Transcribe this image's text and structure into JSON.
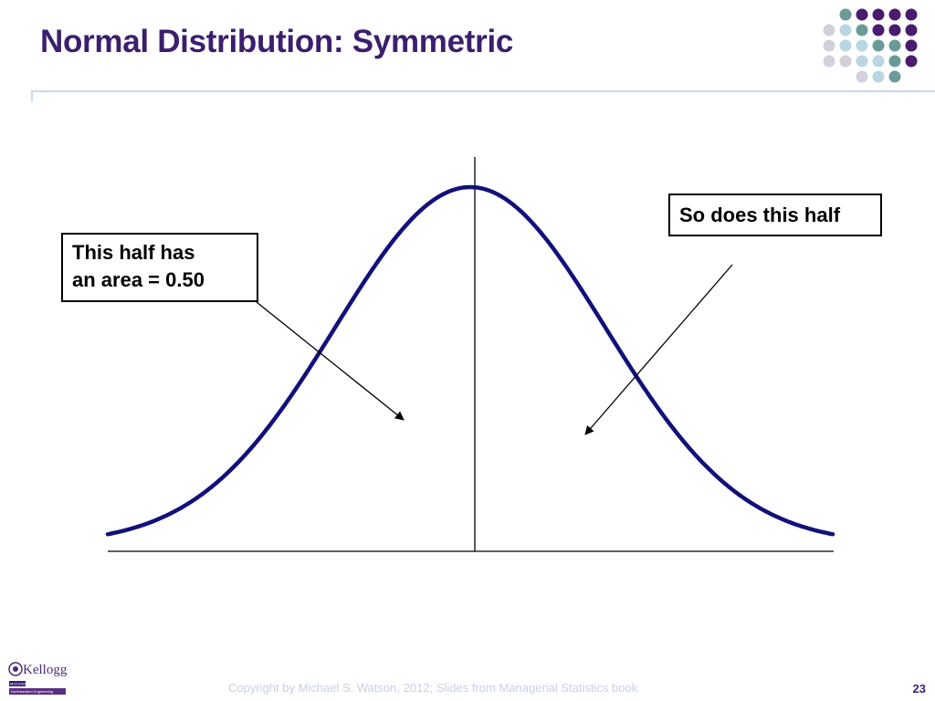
{
  "slide": {
    "title": "Normal Distribution: Symmetric",
    "page_number": "23",
    "footer": "Copyright by Michael S. Watson, 2012;  Slides from Managerial Statistics book"
  },
  "callouts": {
    "left": {
      "line1": "This half has",
      "line2": "an area = 0.50"
    },
    "right": {
      "text": "So does this half"
    }
  },
  "logo": {
    "name": "Kellogg",
    "line1": "McCormick",
    "line2": "Northwestern Engineering"
  },
  "colors": {
    "title": "#3b1f6e",
    "curve": "#12107a",
    "rule": "#c8dbe7",
    "footer": "#c9cfe6",
    "dot_dark": "#4a1a6e",
    "dot_teal": "#6a9b98",
    "dot_light": "#b9d6e3",
    "dot_gray": "#d3d0dc"
  }
}
